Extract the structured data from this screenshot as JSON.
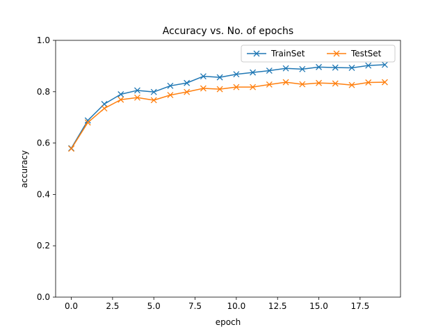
{
  "chart_data": {
    "type": "line",
    "title": "Accuracy vs. No. of epochs",
    "xlabel": "epoch",
    "ylabel": "accuracy",
    "xlim": [
      -0.95,
      19.95
    ],
    "ylim": [
      0.0,
      1.0
    ],
    "x_ticks": [
      0,
      2.5,
      5,
      7.5,
      10,
      12.5,
      15,
      17.5
    ],
    "x_tick_labels": [
      "0.0",
      "2.5",
      "5.0",
      "7.5",
      "10.0",
      "12.5",
      "15.0",
      "17.5"
    ],
    "y_ticks": [
      0,
      0.2,
      0.4,
      0.6,
      0.8,
      1.0
    ],
    "y_tick_labels": [
      "0.0",
      "0.2",
      "0.4",
      "0.6",
      "0.8",
      "1.0"
    ],
    "grid": false,
    "legend_position": "top-right",
    "marker": "x",
    "x": [
      0,
      1,
      2,
      3,
      4,
      5,
      6,
      7,
      8,
      9,
      10,
      11,
      12,
      13,
      14,
      15,
      16,
      17,
      18,
      19
    ],
    "series": [
      {
        "name": "TrainSet",
        "color": "#1f77b4",
        "values": [
          0.58,
          0.688,
          0.752,
          0.79,
          0.805,
          0.799,
          0.823,
          0.834,
          0.86,
          0.856,
          0.868,
          0.875,
          0.882,
          0.891,
          0.888,
          0.896,
          0.894,
          0.893,
          0.902,
          0.905
        ]
      },
      {
        "name": "TestSet",
        "color": "#ff7f0e",
        "values": [
          0.578,
          0.68,
          0.735,
          0.769,
          0.777,
          0.767,
          0.787,
          0.799,
          0.813,
          0.81,
          0.818,
          0.818,
          0.828,
          0.837,
          0.829,
          0.834,
          0.832,
          0.826,
          0.836,
          0.837
        ]
      }
    ]
  }
}
